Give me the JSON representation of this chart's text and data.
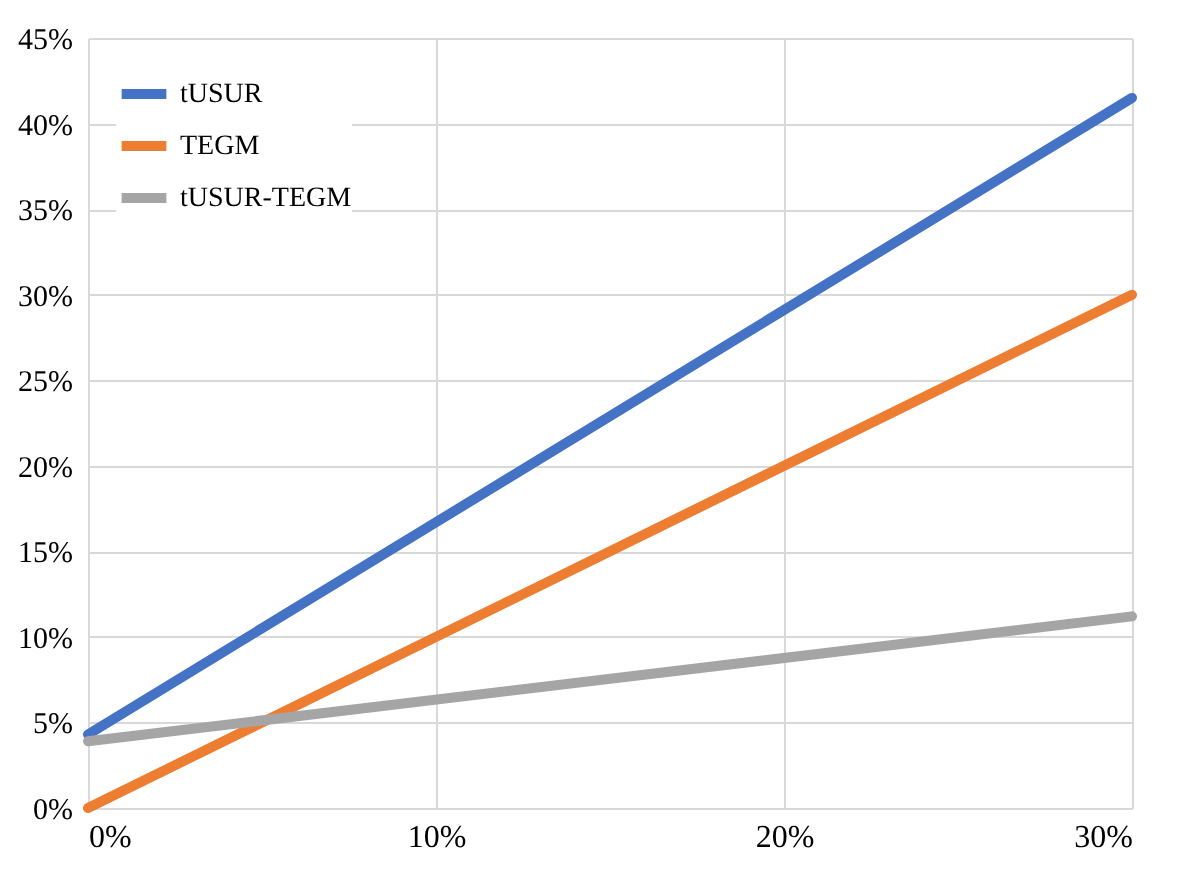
{
  "chart_data": {
    "type": "line",
    "x": [
      0,
      30
    ],
    "series": [
      {
        "name": "tUSUR",
        "color": "#4472c4",
        "values": [
          4.3,
          41.5
        ]
      },
      {
        "name": "TEGM",
        "color": "#ed7d31",
        "values": [
          0,
          30
        ]
      },
      {
        "name": "tUSUR-TEGM",
        "color": "#a5a5a5",
        "values": [
          3.9,
          11.2
        ]
      }
    ],
    "xlim": [
      0,
      30
    ],
    "xticks": [
      {
        "value": 0,
        "label": "0%"
      },
      {
        "value": 10,
        "label": "10%"
      },
      {
        "value": 20,
        "label": "20%"
      },
      {
        "value": 30,
        "label": "30%"
      }
    ],
    "ylim": [
      0,
      45
    ],
    "yticks": [
      {
        "value": 0,
        "label": "0%"
      },
      {
        "value": 5,
        "label": "5%"
      },
      {
        "value": 10,
        "label": "10%"
      },
      {
        "value": 15,
        "label": "15%"
      },
      {
        "value": 20,
        "label": "20%"
      },
      {
        "value": 25,
        "label": "25%"
      },
      {
        "value": 30,
        "label": "30%"
      },
      {
        "value": 35,
        "label": "35%"
      },
      {
        "value": 40,
        "label": "40%"
      },
      {
        "value": 45,
        "label": "45%"
      }
    ],
    "grid": true,
    "legend": "top left",
    "marker": "none",
    "line_style": "solid"
  }
}
